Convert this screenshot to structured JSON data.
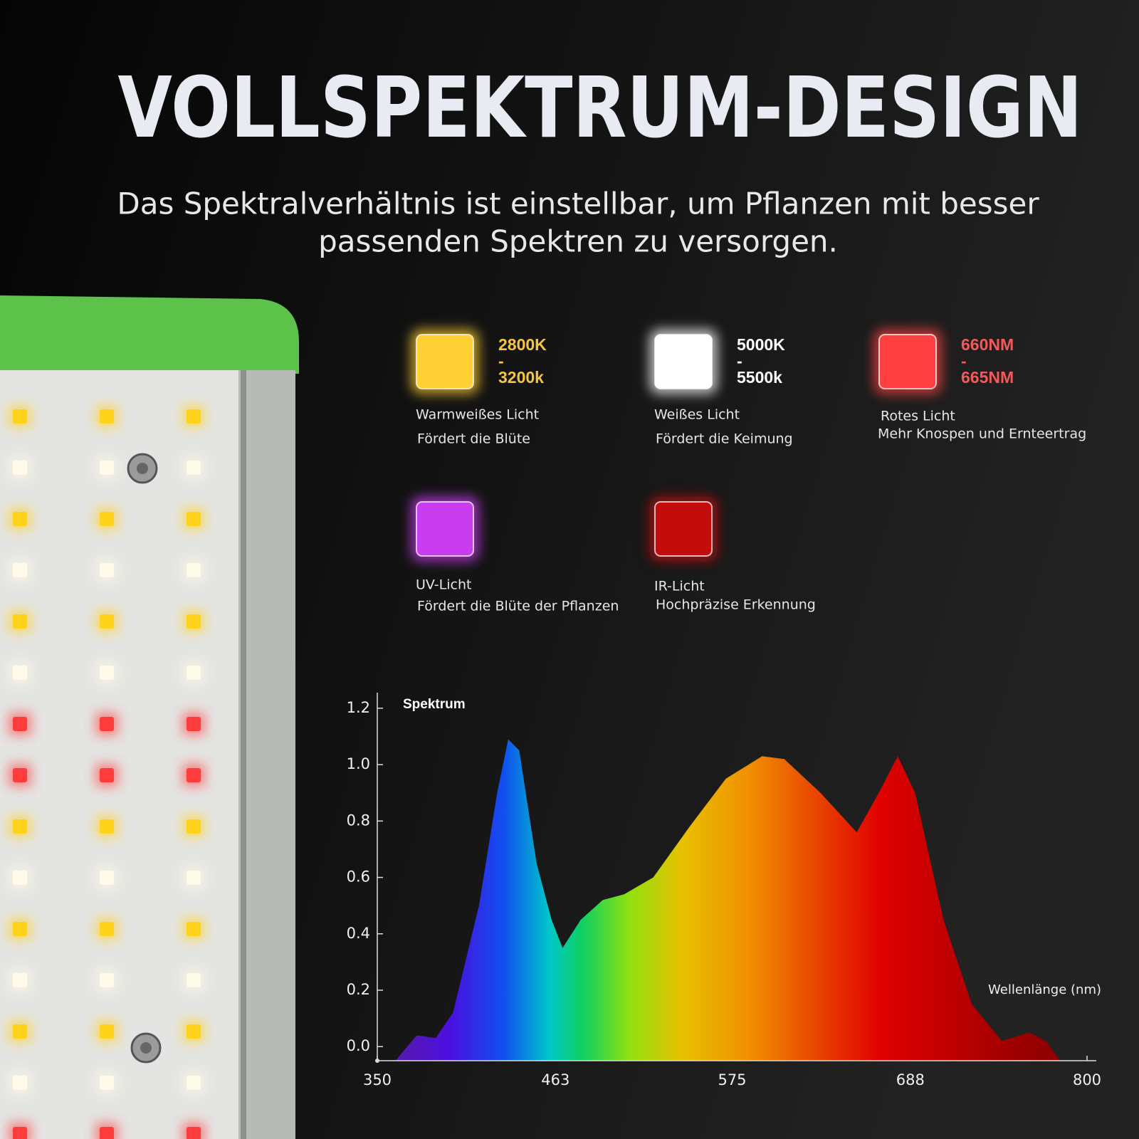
{
  "header": {
    "title": "VOLLSPEKTRUM-DESIGN",
    "subtitle": [
      "Das Spektralverhältnis ist einstellbar, um Pflanzen mit besser",
      "passenden Spektren zu versorgen."
    ]
  },
  "legend": [
    {
      "lines": [
        "2800K",
        "-",
        "3200k"
      ],
      "text_color": "#f5c542",
      "color": "#ffcf33",
      "label": "Warmweißes Licht",
      "description": "Fördert die Blüte"
    },
    {
      "lines": [
        "5000K",
        "-",
        "5500k"
      ],
      "text_color": "#ffffff",
      "color": "#ffffff",
      "label": "Weißes Licht",
      "description": "Fördert die Keimung"
    },
    {
      "lines": [
        "660NM",
        "-",
        "665NM"
      ],
      "text_color": "#f25a5a",
      "color": "#ff4040",
      "label": "Rotes Licht",
      "description": "Mehr Knospen und Ernteertrag"
    },
    {
      "color": "#c93cf0",
      "label": "UV-Licht",
      "description": "Fördert die Blüte der Pflanzen"
    },
    {
      "color": "#c40c0c",
      "label": "IR-Licht",
      "description": "Hochpräzise Erkennung"
    }
  ],
  "chart_data": {
    "type": "area",
    "title": "Spektrum",
    "x_label": "Wellenlänge (nm)",
    "x": [
      361.5,
      375,
      387,
      398,
      414.5,
      426,
      433,
      440,
      451,
      460.5,
      467.5,
      479,
      493,
      506.5,
      525,
      548,
      571,
      594,
      608,
      631,
      654,
      668,
      680,
      691,
      709,
      727,
      746,
      763.5,
      774,
      783
    ],
    "values": [
      -0.05,
      0.04,
      0.03,
      0.12,
      0.5,
      0.9,
      1.09,
      1.05,
      0.65,
      0.45,
      0.35,
      0.45,
      0.52,
      0.54,
      0.6,
      0.78,
      0.95,
      1.03,
      1.02,
      0.9,
      0.76,
      0.9,
      1.03,
      0.9,
      0.45,
      0.15,
      0.02,
      0.05,
      0.02,
      -0.05
    ],
    "xlim": [
      350,
      800
    ],
    "xticks": [
      350,
      463,
      575,
      688,
      800
    ],
    "ylim": [
      -0.05,
      1.23
    ],
    "yticks": [
      {
        "value": 0,
        "label": "0.0"
      },
      0.2,
      0.4,
      0.6,
      0.8,
      {
        "value": 1,
        "label": "1.0"
      },
      1.2
    ]
  }
}
